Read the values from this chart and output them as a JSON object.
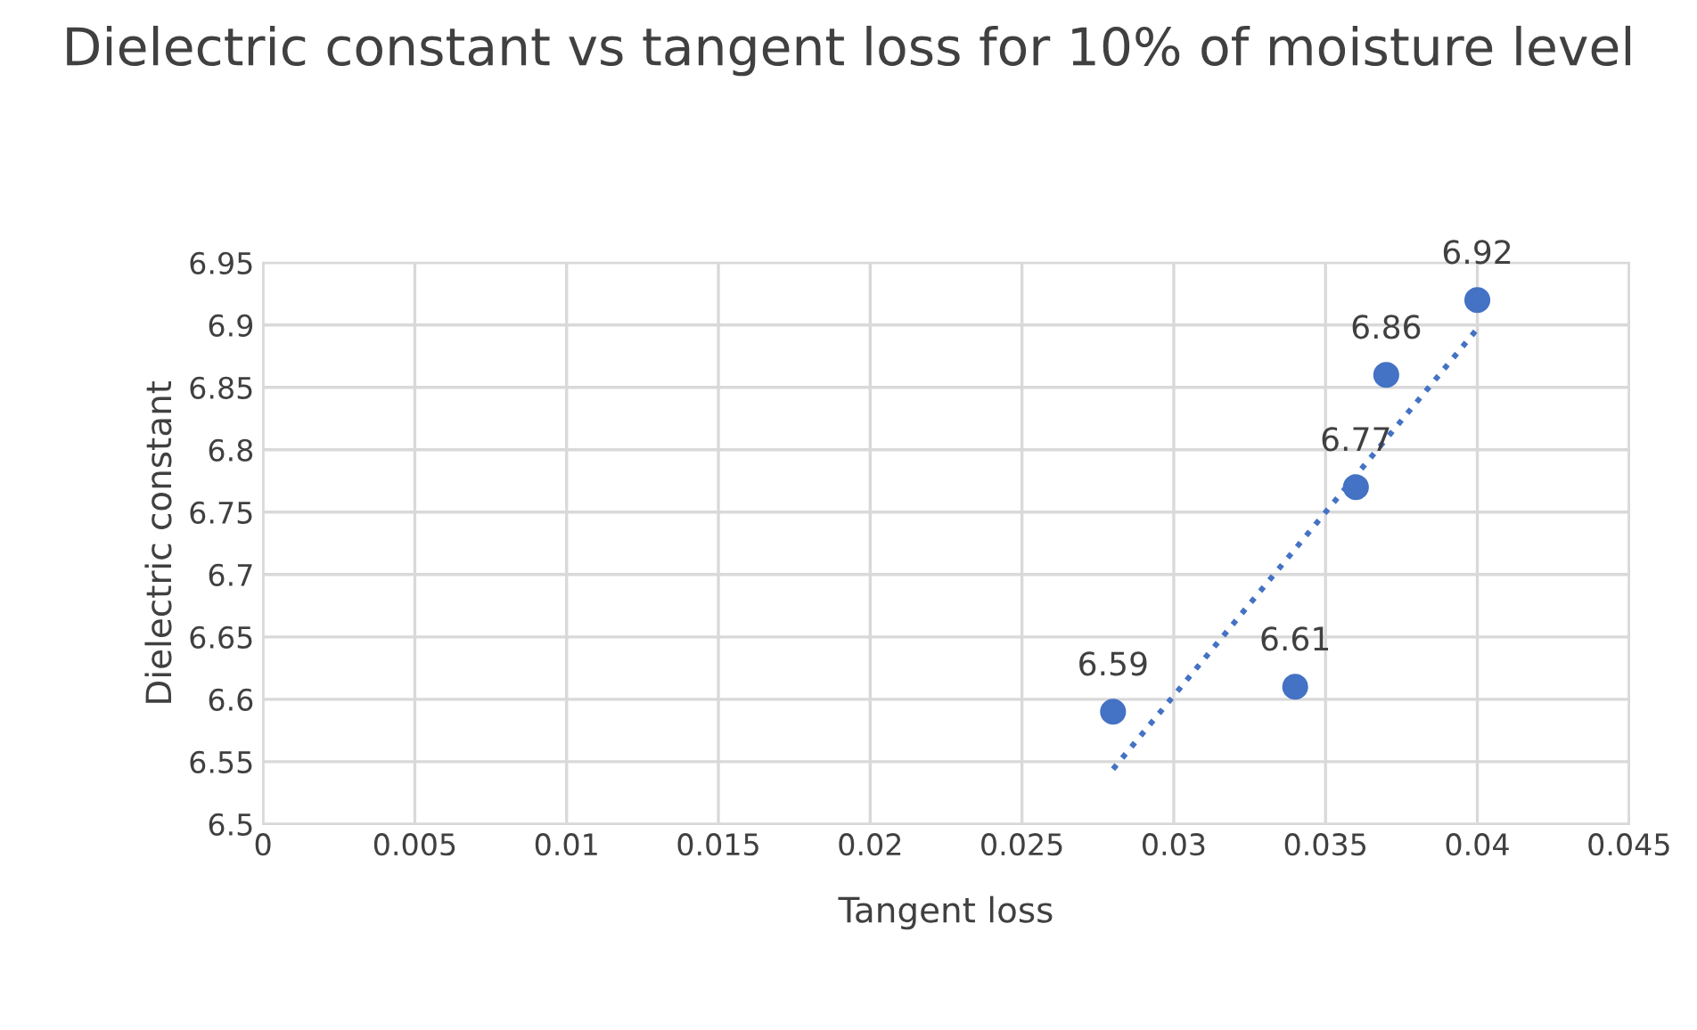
{
  "chart_data": {
    "type": "scatter",
    "title": "Dielectric constant vs tangent loss for 10% of moisture level",
    "xlabel": "Tangent loss",
    "ylabel": "Dielectric constant",
    "series": [
      {
        "color": "#4472c4",
        "x": [
          0.028,
          0.034,
          0.036,
          0.037,
          0.04
        ],
        "values": [
          6.59,
          6.61,
          6.77,
          6.86,
          6.92
        ],
        "marker": "circle",
        "data_labels": true
      },
      {
        "type": "line",
        "color": "#4472c4",
        "x": [
          0.028,
          0.04
        ],
        "values": [
          6.544,
          6.897
        ],
        "line_style": "dotted",
        "marker": "none"
      }
    ],
    "xlim": [
      0,
      0.045
    ],
    "xticks": [
      0,
      0.005,
      0.01,
      0.015,
      0.02,
      0.025,
      0.03,
      0.035,
      0.04,
      0.045
    ],
    "ylim": [
      6.5,
      6.95
    ],
    "yticks": [
      6.5,
      6.55,
      6.6,
      6.65,
      6.7,
      6.75,
      6.8,
      6.85,
      6.9,
      6.95
    ],
    "grid": true,
    "legend": false
  }
}
